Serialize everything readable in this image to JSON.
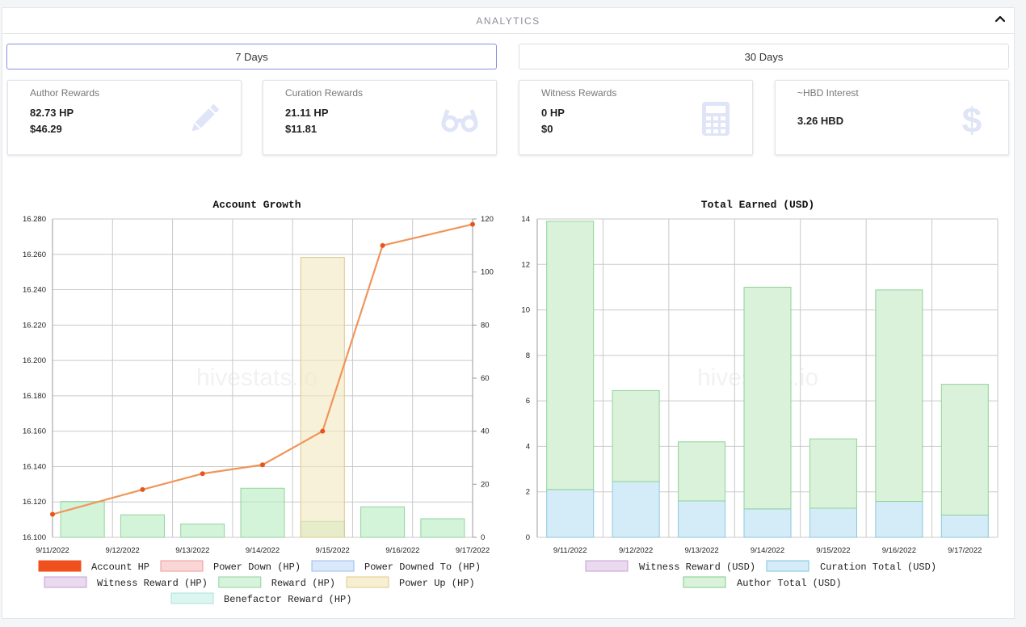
{
  "header": {
    "title": "ANALYTICS"
  },
  "period_buttons": {
    "days7": "7 Days",
    "days30": "30 Days"
  },
  "cards": [
    {
      "label": "Author Rewards",
      "line1": "82.73 HP",
      "line2": "$46.29",
      "icon": "pencil-icon"
    },
    {
      "label": "Curation Rewards",
      "line1": "21.11 HP",
      "line2": "$11.81",
      "icon": "glasses-icon"
    },
    {
      "label": "Witness Rewards",
      "line1": "0 HP",
      "line2": "$0",
      "icon": "calculator-icon"
    },
    {
      "label": "~HBD Interest",
      "line1": "3.26 HBD",
      "icon": "dollar-icon"
    }
  ],
  "watermark": "hivestats.io",
  "colors": {
    "accent_border": "#8b8fe0",
    "icon_tint": "#dfe4f7"
  },
  "chart_data": [
    {
      "type": "bar+line",
      "title": "Account Growth",
      "categories": [
        "9/11/2022",
        "9/12/2022",
        "9/13/2022",
        "9/14/2022",
        "9/15/2022",
        "9/16/2022",
        "9/17/2022"
      ],
      "y_left": {
        "range": [
          16.1,
          16.28
        ],
        "ticks": [
          "16.100",
          "16.120",
          "16.140",
          "16.160",
          "16.180",
          "16.200",
          "16.220",
          "16.240",
          "16.260",
          "16.280"
        ]
      },
      "y_right": {
        "range": [
          0,
          120
        ],
        "ticks": [
          "0",
          "20",
          "40",
          "60",
          "80",
          "100",
          "120"
        ]
      },
      "series": [
        {
          "name": "Account HP",
          "type": "line",
          "axis": "left",
          "color": "#f0501e",
          "values": [
            16.113,
            16.127,
            16.136,
            16.141,
            16.16,
            16.265,
            16.277
          ]
        },
        {
          "name": "Reward (HP)",
          "type": "bar",
          "axis": "right",
          "color": "#b7ecc0",
          "values": [
            13.5,
            8.5,
            5.0,
            18.5,
            6.0,
            11.5,
            7.0
          ]
        },
        {
          "name": "Power Up (HP)",
          "type": "bar",
          "axis": "right",
          "color": "#f3e8bf",
          "values": [
            0,
            0,
            0,
            0,
            105.5,
            0,
            0
          ]
        }
      ],
      "legend": [
        {
          "label": "Account HP",
          "fill": "#f0501e",
          "stroke": "#f0501e"
        },
        {
          "label": "Power Down (HP)",
          "fill": "#fbd6d6",
          "stroke": "#ef9a9a"
        },
        {
          "label": "Power Downed To (HP)",
          "fill": "#d9e8fb",
          "stroke": "#9bbcea"
        },
        {
          "label": "Witness Reward (HP)",
          "fill": "#ead9ef",
          "stroke": "#c3a0cf"
        },
        {
          "label": "Reward (HP)",
          "fill": "#d7f3dc",
          "stroke": "#8fd69c"
        },
        {
          "label": "Power Up (HP)",
          "fill": "#f6efd2",
          "stroke": "#dcc88a"
        },
        {
          "label": "Benefactor Reward (HP)",
          "fill": "#dcf5f0",
          "stroke": "#a9e2d6"
        }
      ]
    },
    {
      "type": "stacked-bar",
      "title": "Total Earned (USD)",
      "categories": [
        "9/11/2022",
        "9/12/2022",
        "9/13/2022",
        "9/14/2022",
        "9/15/2022",
        "9/16/2022",
        "9/17/2022"
      ],
      "y": {
        "range": [
          0,
          14
        ],
        "ticks": [
          "0",
          "2",
          "4",
          "6",
          "8",
          "10",
          "12",
          "14"
        ]
      },
      "series": [
        {
          "name": "Curation Total (USD)",
          "color": "#d4ecf7",
          "values": [
            2.1,
            2.45,
            1.6,
            1.25,
            1.28,
            1.58,
            0.98
          ]
        },
        {
          "name": "Author Total (USD)",
          "color": "#d9f2d9",
          "values": [
            11.8,
            4.0,
            2.6,
            9.75,
            3.05,
            9.3,
            5.75
          ]
        }
      ],
      "legend": [
        {
          "label": "Witness Reward (USD)",
          "fill": "#ead9ef",
          "stroke": "#c3a0cf"
        },
        {
          "label": "Curation Total (USD)",
          "fill": "#d4ecf7",
          "stroke": "#7fc3dc"
        },
        {
          "label": "Author Total (USD)",
          "fill": "#d9f2d9",
          "stroke": "#7fcc8a"
        }
      ]
    }
  ]
}
